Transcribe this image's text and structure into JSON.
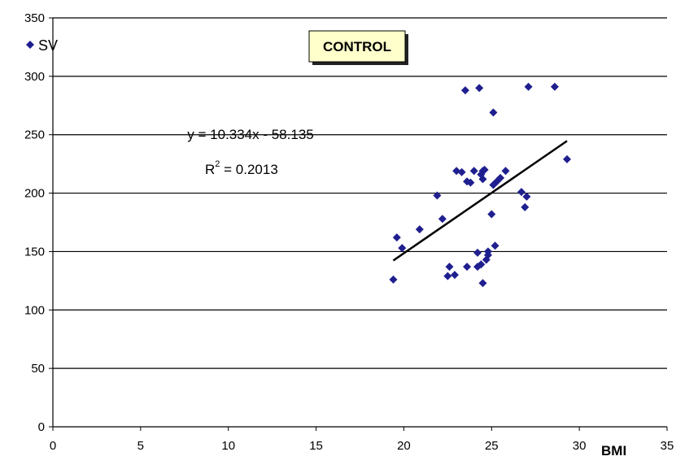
{
  "chart_data": {
    "type": "scatter",
    "title": "CONTROL",
    "xlabel": "BMI",
    "ylabel": "",
    "xlim": [
      0,
      35
    ],
    "ylim": [
      0,
      350
    ],
    "x_ticks": [
      "0",
      "5",
      "10",
      "15",
      "20",
      "25",
      "30",
      "35"
    ],
    "y_ticks": [
      "0",
      "50",
      "100",
      "150",
      "200",
      "250",
      "300",
      "350"
    ],
    "grid": "horizontal",
    "legend_position": "top-left",
    "series": [
      {
        "name": "SV",
        "color": "#1F1F8F",
        "marker": "diamond",
        "points": [
          [
            19.4,
            126
          ],
          [
            19.6,
            162
          ],
          [
            19.9,
            153
          ],
          [
            20.9,
            169
          ],
          [
            21.9,
            198
          ],
          [
            22.2,
            178
          ],
          [
            22.5,
            129
          ],
          [
            22.6,
            137
          ],
          [
            22.9,
            130
          ],
          [
            23.0,
            219
          ],
          [
            23.3,
            218
          ],
          [
            23.5,
            288
          ],
          [
            23.6,
            210
          ],
          [
            23.6,
            137
          ],
          [
            23.8,
            209
          ],
          [
            24.0,
            219
          ],
          [
            24.2,
            137
          ],
          [
            24.2,
            149
          ],
          [
            24.3,
            290
          ],
          [
            24.4,
            216
          ],
          [
            24.4,
            139
          ],
          [
            24.5,
            219
          ],
          [
            24.5,
            212
          ],
          [
            24.5,
            123
          ],
          [
            24.6,
            220
          ],
          [
            24.7,
            143
          ],
          [
            24.8,
            150
          ],
          [
            24.8,
            147
          ],
          [
            25.0,
            182
          ],
          [
            25.1,
            269
          ],
          [
            25.1,
            207
          ],
          [
            25.2,
            155
          ],
          [
            25.3,
            210
          ],
          [
            25.5,
            213
          ],
          [
            25.8,
            219
          ],
          [
            26.7,
            201
          ],
          [
            26.9,
            188
          ],
          [
            27.0,
            197
          ],
          [
            27.1,
            291
          ],
          [
            28.6,
            291
          ],
          [
            29.3,
            229
          ]
        ]
      }
    ],
    "trendline": {
      "equation": "y = 10.334x - 58.135",
      "r2_label": "R",
      "r2_superscript": "2",
      "r2_value": " = 0.2013",
      "slope": 10.334,
      "intercept": -58.135,
      "x_range": [
        19.4,
        29.3
      ],
      "color": "#000000"
    }
  }
}
